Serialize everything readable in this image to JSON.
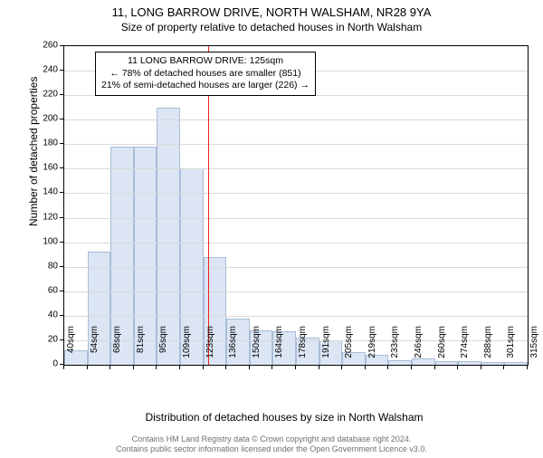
{
  "title": "11, LONG BARROW DRIVE, NORTH WALSHAM, NR28 9YA",
  "subtitle": "Size of property relative to detached houses in North Walsham",
  "ylabel": "Number of detached properties",
  "xlabel": "Distribution of detached houses by size in North Walsham",
  "chart": {
    "type": "histogram",
    "ylim": [
      0,
      260
    ],
    "ytick_step": 20,
    "background_color": "#ffffff",
    "grid_color": "#d9d9d9",
    "axis_color": "#000000",
    "bar_fill": "#dbe5f4",
    "bar_stroke": "#a9bcd8",
    "marker_color": "#ee2020",
    "marker_value": 125,
    "label_fontsize": 10,
    "axis_label_fontsize": 12,
    "x_start": 40,
    "x_bin_width": 13.67,
    "x_tick_labels": [
      "40sqm",
      "54sqm",
      "68sqm",
      "81sqm",
      "95sqm",
      "109sqm",
      "123sqm",
      "136sqm",
      "150sqm",
      "164sqm",
      "178sqm",
      "191sqm",
      "205sqm",
      "219sqm",
      "233sqm",
      "246sqm",
      "260sqm",
      "274sqm",
      "288sqm",
      "301sqm",
      "315sqm"
    ],
    "values": [
      12,
      92,
      178,
      178,
      210,
      160,
      88,
      38,
      28,
      27,
      22,
      20,
      10,
      8,
      4,
      5,
      3,
      3,
      2,
      2
    ]
  },
  "infobox": {
    "line1": "11 LONG BARROW DRIVE: 125sqm",
    "line2": "← 78% of detached houses are smaller (851)",
    "line3": "21% of semi-detached houses are larger (226) →"
  },
  "footer": {
    "line1": "Contains HM Land Registry data © Crown copyright and database right 2024.",
    "line2": "Contains public sector information licensed under the Open Government Licence v3.0."
  }
}
